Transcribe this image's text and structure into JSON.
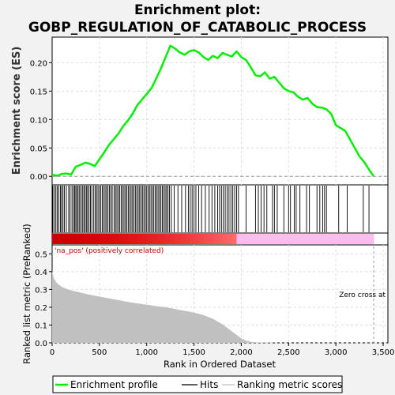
{
  "chart_data": {
    "type": "line",
    "title_line1": "Enrichment plot:",
    "title_line2": "GOBP_REGULATION_OF_CATABOLIC_PROCESS",
    "es_ylabel": "Enrichment score (ES)",
    "rank_ylabel": "Ranked list metric (PreRanked)",
    "xlabel": "Rank in Ordered Dataset",
    "xlim": [
      0,
      3550
    ],
    "x_ticks": [
      0,
      500,
      1000,
      1500,
      2000,
      2500,
      3000,
      3500
    ],
    "x_tick_labels": [
      "0",
      "500",
      "1,000",
      "1,500",
      "2,000",
      "2,500",
      "3,000",
      "3,500"
    ],
    "es_ylim": [
      -0.015,
      0.245
    ],
    "es_ticks": [
      0.0,
      0.05,
      0.1,
      0.15,
      0.2
    ],
    "es_tick_labels": [
      "0.00",
      "0.05",
      "0.10",
      "0.15",
      "0.20"
    ],
    "rank_ylim": [
      0,
      0.55
    ],
    "rank_ticks": [
      0.0,
      0.1,
      0.2,
      0.3,
      0.4,
      0.5
    ],
    "rank_tick_labels": [
      "0.0",
      "0.1",
      "0.2",
      "0.3",
      "0.4",
      "0.5"
    ],
    "n_genes": 3400,
    "zero_cross": 3400,
    "pos_annotation": "'na_pos' (positively correlated)",
    "zero_cross_label": "Zero cross at",
    "enrichment_profile": {
      "name": "Enrichment profile",
      "x": [
        0,
        50,
        100,
        150,
        200,
        250,
        300,
        350,
        400,
        450,
        500,
        550,
        600,
        650,
        700,
        750,
        800,
        850,
        900,
        950,
        1000,
        1050,
        1100,
        1150,
        1200,
        1250,
        1300,
        1350,
        1400,
        1450,
        1500,
        1550,
        1600,
        1650,
        1700,
        1750,
        1800,
        1850,
        1900,
        1950,
        2000,
        2050,
        2100,
        2150,
        2200,
        2250,
        2300,
        2350,
        2400,
        2450,
        2500,
        2550,
        2600,
        2650,
        2700,
        2750,
        2800,
        2850,
        2900,
        2950,
        3000,
        3050,
        3100,
        3150,
        3200,
        3250,
        3300,
        3350,
        3400
      ],
      "y": [
        0.003,
        0.001,
        0.004,
        0.005,
        0.003,
        0.017,
        0.02,
        0.024,
        0.022,
        0.018,
        0.03,
        0.042,
        0.055,
        0.065,
        0.075,
        0.088,
        0.098,
        0.11,
        0.125,
        0.135,
        0.145,
        0.155,
        0.172,
        0.19,
        0.21,
        0.23,
        0.225,
        0.218,
        0.214,
        0.22,
        0.222,
        0.218,
        0.21,
        0.205,
        0.212,
        0.208,
        0.217,
        0.214,
        0.211,
        0.22,
        0.21,
        0.205,
        0.192,
        0.178,
        0.176,
        0.183,
        0.172,
        0.175,
        0.165,
        0.155,
        0.15,
        0.148,
        0.14,
        0.135,
        0.138,
        0.128,
        0.122,
        0.121,
        0.118,
        0.11,
        0.09,
        0.085,
        0.08,
        0.065,
        0.05,
        0.035,
        0.025,
        0.012,
        0.0
      ]
    },
    "hits": [
      8,
      25,
      40,
      55,
      70,
      88,
      100,
      115,
      130,
      150,
      175,
      190,
      210,
      225,
      238,
      250,
      262,
      275,
      290,
      305,
      320,
      335,
      348,
      362,
      375,
      390,
      405,
      420,
      440,
      455,
      470,
      485,
      500,
      515,
      530,
      545,
      560,
      575,
      590,
      605,
      620,
      635,
      655,
      670,
      685,
      700,
      715,
      730,
      745,
      760,
      775,
      790,
      805,
      820,
      835,
      850,
      865,
      880,
      895,
      910,
      925,
      940,
      955,
      970,
      985,
      1000,
      1015,
      1030,
      1045,
      1060,
      1075,
      1090,
      1105,
      1120,
      1135,
      1150,
      1165,
      1180,
      1195,
      1210,
      1225,
      1240,
      1260,
      1290,
      1330,
      1370,
      1410,
      1440,
      1460,
      1480,
      1500,
      1520,
      1550,
      1580,
      1620,
      1660,
      1690,
      1720,
      1750,
      1770,
      1790,
      1810,
      1830,
      1850,
      1870,
      1890,
      1910,
      1930,
      1950,
      1970,
      2050,
      2150,
      2180,
      2210,
      2240,
      2270,
      2330,
      2350,
      2380,
      2450,
      2500,
      2520,
      2560,
      2580,
      2620,
      2690,
      2720,
      2800,
      2830,
      2860,
      2880,
      2900,
      3030,
      3120,
      3290,
      3350
    ],
    "ranking_metric": {
      "name": "Ranking metric scores",
      "x": [
        0,
        20,
        50,
        100,
        150,
        200,
        300,
        400,
        500,
        600,
        700,
        800,
        900,
        1000,
        1100,
        1200,
        1300,
        1400,
        1500,
        1600,
        1700,
        1800,
        1850,
        1900,
        1950,
        2000,
        2050,
        2100,
        2150,
        2200,
        2300,
        2400,
        3400
      ],
      "y": [
        0.4,
        0.36,
        0.335,
        0.315,
        0.303,
        0.295,
        0.282,
        0.27,
        0.26,
        0.25,
        0.24,
        0.23,
        0.222,
        0.214,
        0.206,
        0.2,
        0.19,
        0.18,
        0.17,
        0.156,
        0.135,
        0.105,
        0.085,
        0.065,
        0.045,
        0.025,
        0.012,
        0.006,
        0.003,
        0.002,
        0.001,
        0.0,
        0.0
      ]
    },
    "legend": [
      "Enrichment profile",
      "Hits",
      "Ranking metric scores"
    ],
    "colors": {
      "profile": "#00ee00",
      "hits": "#000000",
      "metric_fill": "#c0c0c0",
      "pos_band": "#cc0000",
      "neg_band": "#ffbbee"
    }
  }
}
